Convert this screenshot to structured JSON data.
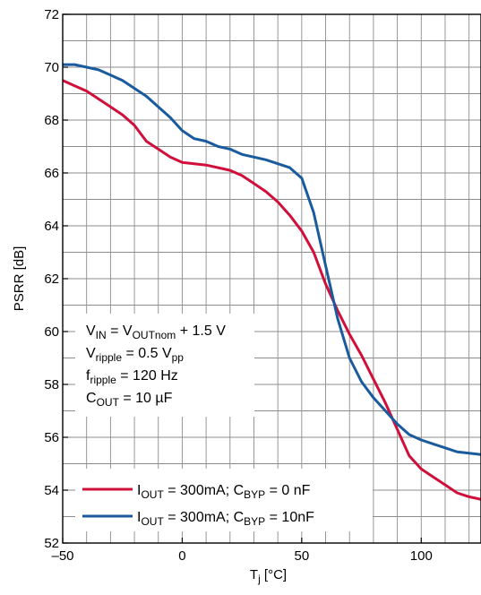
{
  "chart_data": {
    "type": "line",
    "title": "",
    "xlabel": {
      "main": "T",
      "sub": "j",
      "unit": " [°C]"
    },
    "ylabel": "PSRR [dB]",
    "xlim": [
      -50,
      125
    ],
    "ylim": [
      52,
      72
    ],
    "grid": true,
    "x_ticks": [
      {
        "value": -50,
        "label": "–50"
      },
      {
        "value": 0,
        "label": "0"
      },
      {
        "value": 50,
        "label": "50"
      },
      {
        "value": 100,
        "label": "100"
      }
    ],
    "y_ticks": [
      {
        "value": 52,
        "label": "52"
      },
      {
        "value": 54,
        "label": "54"
      },
      {
        "value": 56,
        "label": "56"
      },
      {
        "value": 58,
        "label": "58"
      },
      {
        "value": 60,
        "label": "60"
      },
      {
        "value": 62,
        "label": "62"
      },
      {
        "value": 64,
        "label": "64"
      },
      {
        "value": 66,
        "label": "66"
      },
      {
        "value": 68,
        "label": "68"
      },
      {
        "value": 70,
        "label": "70"
      },
      {
        "value": 72,
        "label": "72"
      }
    ],
    "conditions": [
      [
        {
          "t": "V"
        },
        {
          "t": "IN",
          "s": "sub"
        },
        {
          "t": " = V"
        },
        {
          "t": "OUTnom",
          "s": "sub"
        },
        {
          "t": " + 1.5 V"
        }
      ],
      [
        {
          "t": "V"
        },
        {
          "t": "ripple",
          "s": "sub"
        },
        {
          "t": " = 0.5 V"
        },
        {
          "t": "pp",
          "s": "sub"
        }
      ],
      [
        {
          "t": "f"
        },
        {
          "t": "ripple",
          "s": "sub"
        },
        {
          "t": " = 120 Hz"
        }
      ],
      [
        {
          "t": "C"
        },
        {
          "t": "OUT",
          "s": "sub"
        },
        {
          "t": " = 10 µF"
        }
      ]
    ],
    "series": [
      {
        "legend": [
          {
            "t": "I"
          },
          {
            "t": "OUT",
            "s": "sub"
          },
          {
            "t": " = 300mA; C"
          },
          {
            "t": "BYP",
            "s": "sub"
          },
          {
            "t": " = 0 nF"
          }
        ],
        "color": "#d0103a",
        "x": [
          -50,
          -45,
          -40,
          -35,
          -30,
          -25,
          -20,
          -15,
          -10,
          -5,
          0,
          5,
          10,
          15,
          20,
          25,
          30,
          35,
          40,
          45,
          50,
          55,
          60,
          65,
          70,
          75,
          80,
          85,
          90,
          95,
          100,
          105,
          110,
          115,
          120,
          125
        ],
        "y": [
          69.5,
          69.3,
          69.1,
          68.8,
          68.5,
          68.2,
          67.8,
          67.2,
          66.9,
          66.6,
          66.4,
          66.35,
          66.3,
          66.2,
          66.1,
          65.9,
          65.6,
          65.3,
          64.9,
          64.4,
          63.8,
          63.0,
          61.8,
          60.8,
          59.9,
          59.1,
          58.2,
          57.3,
          56.3,
          55.3,
          54.8,
          54.5,
          54.2,
          53.9,
          53.75,
          53.65
        ]
      },
      {
        "legend": [
          {
            "t": "I"
          },
          {
            "t": "OUT",
            "s": "sub"
          },
          {
            "t": " = 300mA; C"
          },
          {
            "t": "BYP",
            "s": "sub"
          },
          {
            "t": " = 10nF"
          }
        ],
        "color": "#1a5b9e",
        "x": [
          -50,
          -45,
          -40,
          -35,
          -30,
          -25,
          -20,
          -15,
          -10,
          -5,
          0,
          5,
          10,
          15,
          20,
          25,
          30,
          35,
          40,
          45,
          50,
          55,
          60,
          65,
          70,
          75,
          80,
          85,
          90,
          95,
          100,
          105,
          110,
          115,
          120,
          125
        ],
        "y": [
          70.1,
          70.1,
          70.0,
          69.9,
          69.7,
          69.5,
          69.2,
          68.9,
          68.5,
          68.1,
          67.6,
          67.3,
          67.2,
          67.0,
          66.9,
          66.7,
          66.6,
          66.5,
          66.35,
          66.2,
          65.8,
          64.5,
          62.5,
          60.5,
          59.0,
          58.1,
          57.5,
          57.0,
          56.5,
          56.1,
          55.9,
          55.75,
          55.6,
          55.45,
          55.4,
          55.35
        ]
      }
    ]
  }
}
